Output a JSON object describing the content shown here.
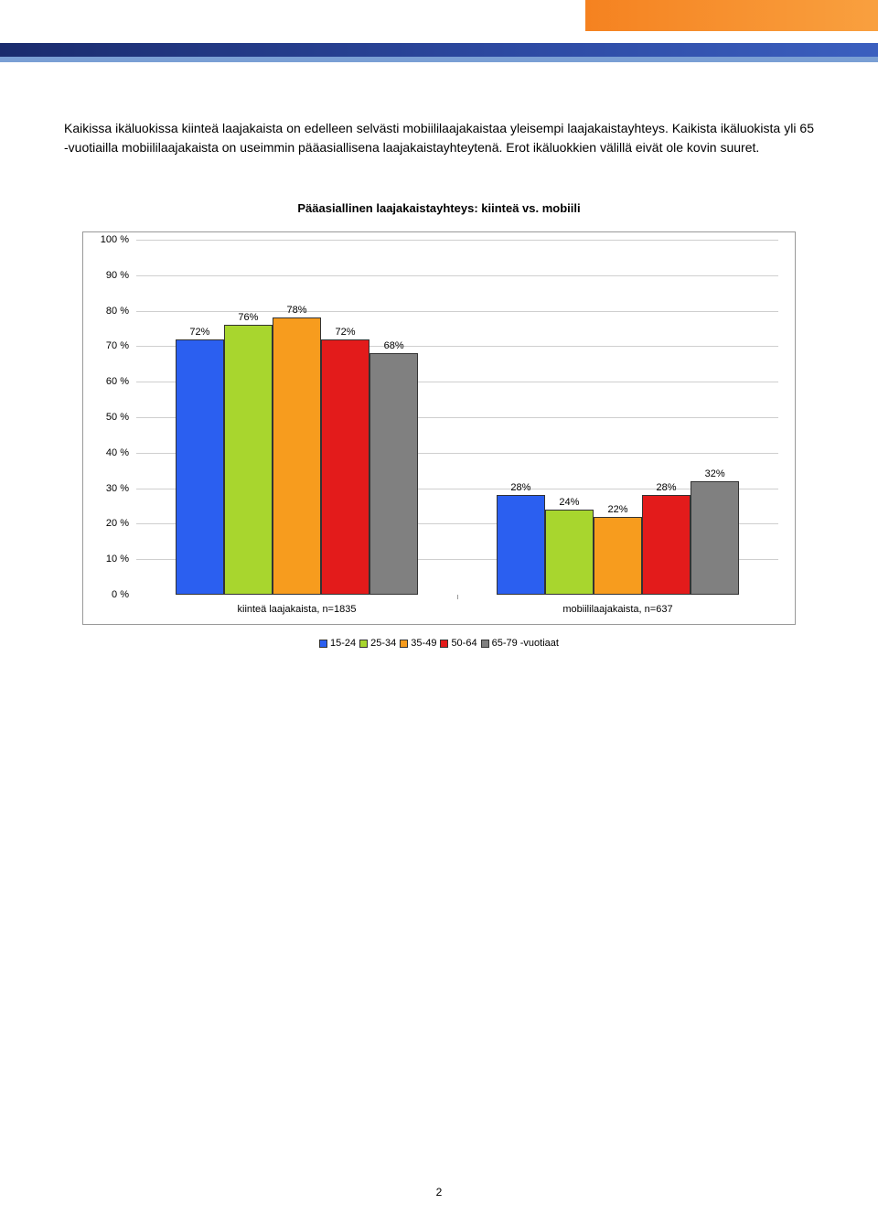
{
  "header": {
    "orange_gradient": [
      "#f58220",
      "#f9a03f"
    ],
    "blue_dark_gradient": [
      "#1a2b6d",
      "#3b5fbf"
    ],
    "blue_light": "#7a9fd4"
  },
  "description": "Kaikissa ikäluokissa kiinteä laajakaista on edelleen selvästi mobiililaajakaistaa yleisempi laajakaistayhteys. Kaikista ikäluokista yli 65 -vuotiailla mobiililaajakaista on useimmin pääasiallisena laajakaistayhteytenä. Erot ikäluokkien välillä eivät ole kovin suuret.",
  "chart": {
    "type": "bar",
    "title": "Pääasiallinen laajakaistayhteys: kiinteä vs. mobiili",
    "title_fontsize": 13,
    "y": {
      "min": 0,
      "max": 100,
      "step": 10,
      "suffix": " %"
    },
    "series_colors": [
      "#2b5ff0",
      "#a8d62e",
      "#f79c1e",
      "#e31b1b",
      "#808080"
    ],
    "series_labels": [
      "15-24",
      "25-34",
      "35-49",
      "50-64",
      "65-79 -vuotiaat"
    ],
    "bar_width_pct": 18,
    "groups": [
      {
        "label": "kiinteä laajakaista, n=1835",
        "values": [
          72,
          76,
          78,
          72,
          68
        ]
      },
      {
        "label": "mobiililaajakaista, n=637",
        "values": [
          28,
          24,
          22,
          28,
          32
        ]
      }
    ],
    "grid_color": "#cfcfcf",
    "border_color": "#999",
    "label_fontsize": 11,
    "background_color": "#ffffff"
  },
  "page_number": "2"
}
